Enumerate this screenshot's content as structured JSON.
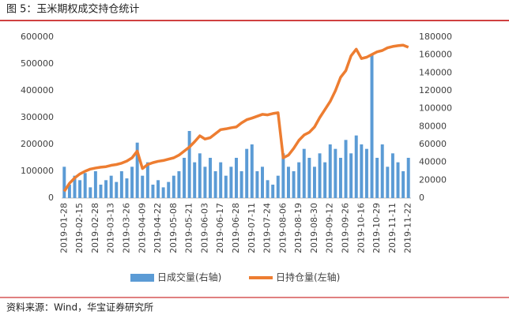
{
  "chart_data": {
    "type": "combo",
    "title": "图 5：玉米期权成交持仓统计",
    "source": "资料来源：Wind，华宝证券研究所",
    "categories": [
      "2019-01-28",
      null,
      null,
      "2019-02-15",
      null,
      null,
      "2019-02-28",
      null,
      null,
      "2019-03-13",
      null,
      null,
      "2019-03-26",
      null,
      null,
      "2019-04-09",
      null,
      null,
      "2019-04-22",
      null,
      null,
      "2019-05-08",
      null,
      null,
      "2019-05-21",
      null,
      null,
      "2019-06-03",
      null,
      null,
      "2019-06-17",
      null,
      null,
      "2019-06-28",
      null,
      null,
      "2019-07-11",
      null,
      null,
      "2019-07-24",
      null,
      null,
      "2019-08-06",
      null,
      null,
      "2019-08-19",
      null,
      null,
      "2019-08-30",
      null,
      null,
      "2019-09-12",
      null,
      null,
      "2019-09-26",
      null,
      null,
      "2019-10-16",
      null,
      null,
      "2019-10-29",
      null,
      null,
      "2019-11-11",
      null,
      null,
      "2019-11-22"
    ],
    "series": [
      {
        "name": "日成交量(右轴)",
        "type": "bar",
        "axis": "y2",
        "color": "#5b9bd5",
        "values": [
          35000,
          15000,
          25000,
          20000,
          28000,
          12000,
          30000,
          15000,
          20000,
          25000,
          18000,
          30000,
          22000,
          35000,
          62000,
          25000,
          40000,
          15000,
          20000,
          12000,
          18000,
          25000,
          30000,
          45000,
          75000,
          40000,
          50000,
          35000,
          45000,
          30000,
          40000,
          25000,
          35000,
          45000,
          30000,
          55000,
          60000,
          30000,
          35000,
          20000,
          15000,
          25000,
          50000,
          35000,
          30000,
          40000,
          55000,
          45000,
          35000,
          50000,
          40000,
          60000,
          55000,
          45000,
          65000,
          50000,
          70000,
          60000,
          55000,
          160000,
          45000,
          60000,
          35000,
          50000,
          40000,
          30000,
          45000
        ]
      },
      {
        "name": "日持仓量(左轴)",
        "type": "line",
        "axis": "y",
        "color": "#ed7d31",
        "values": [
          25000,
          55000,
          75000,
          90000,
          100000,
          108000,
          112000,
          115000,
          117000,
          122000,
          125000,
          130000,
          138000,
          150000,
          175000,
          110000,
          125000,
          132000,
          137000,
          140000,
          145000,
          150000,
          160000,
          175000,
          190000,
          210000,
          232000,
          220000,
          225000,
          240000,
          255000,
          258000,
          262000,
          265000,
          280000,
          292000,
          298000,
          305000,
          312000,
          310000,
          315000,
          318000,
          150000,
          160000,
          185000,
          215000,
          235000,
          245000,
          265000,
          300000,
          330000,
          360000,
          400000,
          450000,
          475000,
          530000,
          555000,
          520000,
          525000,
          535000,
          545000,
          550000,
          560000,
          565000,
          568000,
          570000,
          562000
        ]
      }
    ],
    "ylim": [
      0,
      600000
    ],
    "yticks": [
      0,
      100000,
      200000,
      300000,
      400000,
      500000,
      600000
    ],
    "y2lim": [
      0,
      180000
    ],
    "y2ticks": [
      0,
      20000,
      40000,
      60000,
      80000,
      100000,
      120000,
      140000,
      160000,
      180000
    ]
  }
}
